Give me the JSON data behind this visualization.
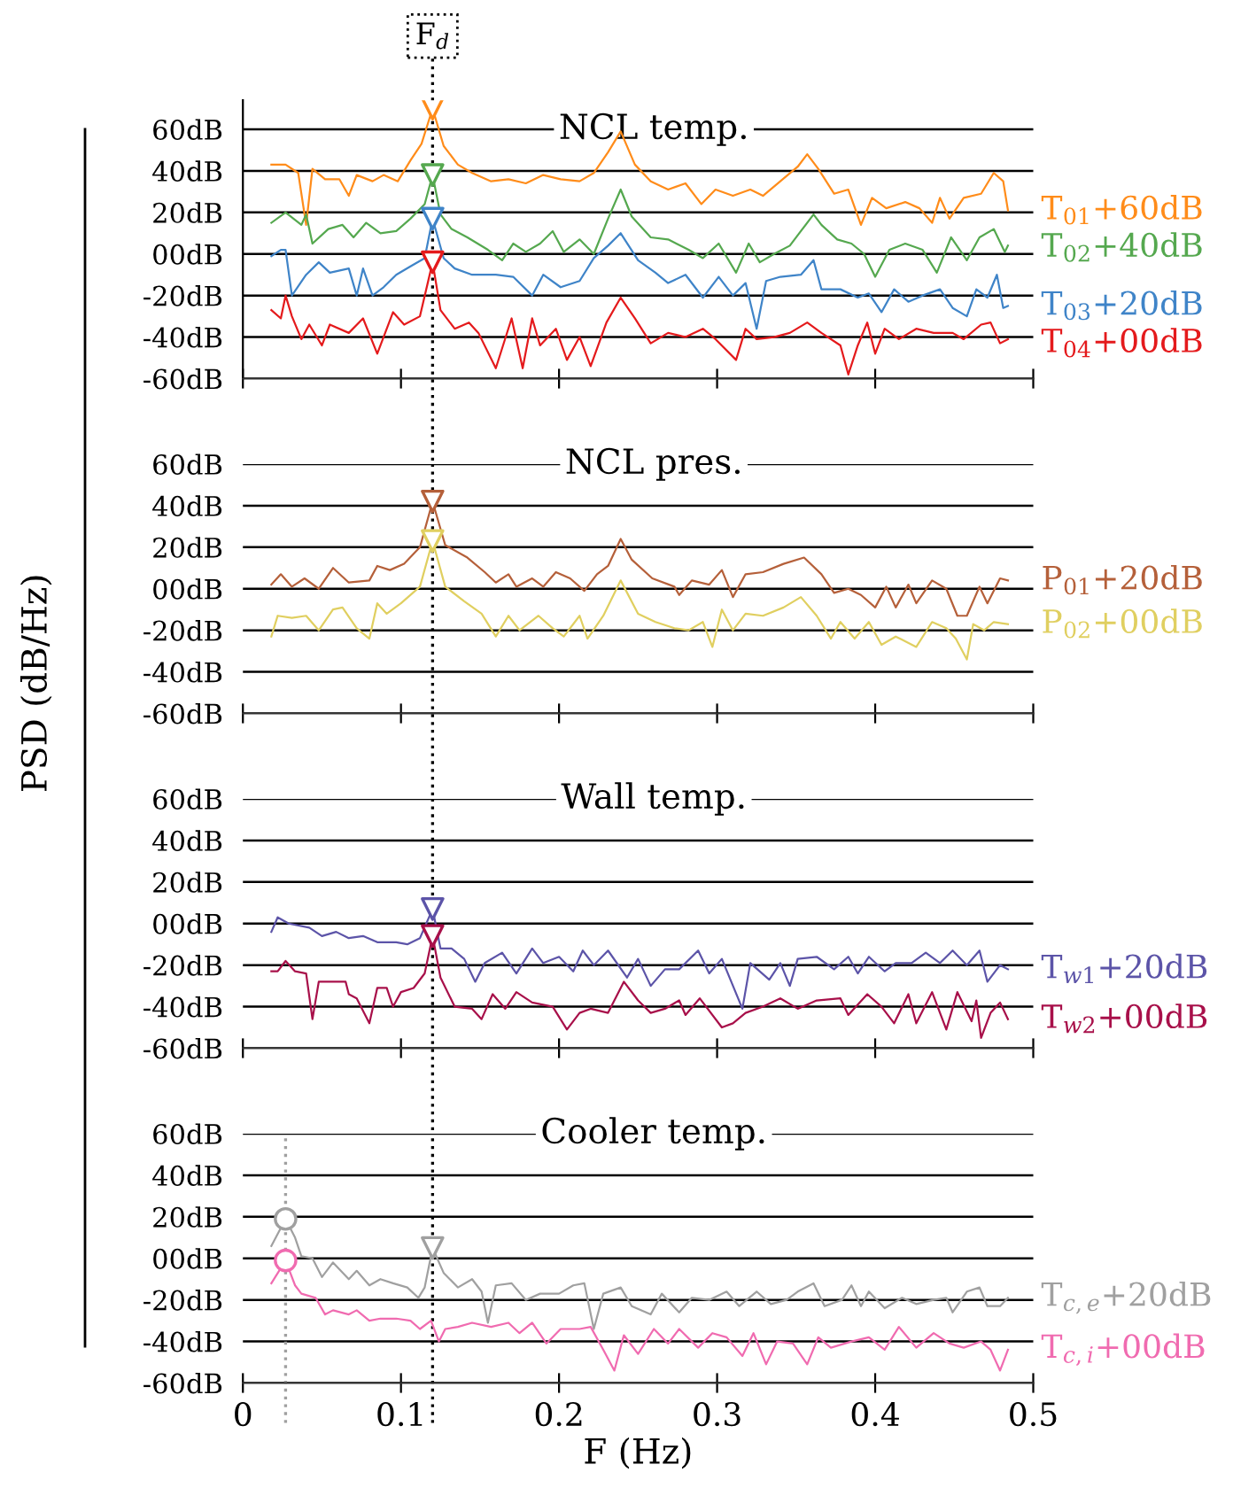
{
  "chart_data": [
    {
      "type": "line",
      "title": "NCL temp.",
      "xlim": [
        0,
        0.5
      ],
      "xticks": [
        0,
        0.1,
        0.2,
        0.3,
        0.4,
        0.5
      ],
      "ylim": [
        -60,
        74
      ],
      "yticks": [
        {
          "value": 60,
          "label": "60dB"
        },
        {
          "value": 40,
          "label": "40dB"
        },
        {
          "value": 20,
          "label": "20dB"
        },
        {
          "value": 0,
          "label": "00dB"
        },
        {
          "value": -20,
          "label": "-20dB"
        },
        {
          "value": -40,
          "label": "-40dB"
        },
        {
          "value": -60,
          "label": "-60dB"
        }
      ],
      "grid": "y",
      "tick_labels": "y",
      "line_style": "solid",
      "ref_lines": [
        {
          "axis": "x",
          "value": 0.12,
          "label": "F$_{d}$",
          "line_style": "dotted",
          "color": "#000000"
        }
      ],
      "series": [
        {
          "name": "T$_{01}$+60dB",
          "color": "#ff8c1a",
          "x": [
            0.018,
            0.027,
            0.035,
            0.04,
            0.044,
            0.052,
            0.061,
            0.067,
            0.072,
            0.082,
            0.089,
            0.098,
            0.106,
            0.113,
            0.12,
            0.127,
            0.136,
            0.145,
            0.157,
            0.168,
            0.179,
            0.19,
            0.201,
            0.213,
            0.222,
            0.231,
            0.239,
            0.248,
            0.258,
            0.269,
            0.28,
            0.29,
            0.299,
            0.31,
            0.321,
            0.329,
            0.34,
            0.351,
            0.357,
            0.364,
            0.374,
            0.383,
            0.391,
            0.398,
            0.407,
            0.419,
            0.428,
            0.436,
            0.441,
            0.447,
            0.456,
            0.467,
            0.475,
            0.481,
            0.484
          ],
          "values": [
            43,
            43,
            39,
            14,
            41,
            36,
            36,
            28,
            38,
            35,
            38,
            35,
            45,
            53,
            70,
            52,
            43,
            39,
            35,
            36,
            34,
            38,
            36,
            35,
            39,
            49,
            59,
            43,
            35,
            31,
            34,
            24,
            31,
            28,
            31,
            28,
            35,
            42,
            48,
            41,
            29,
            31,
            14,
            27,
            22,
            25,
            22,
            15,
            27,
            17,
            27,
            29,
            39,
            35,
            21
          ]
        },
        {
          "name": "T$_{02}$+40dB",
          "color": "#55a84f",
          "x": [
            0.018,
            0.027,
            0.037,
            0.04,
            0.044,
            0.054,
            0.063,
            0.07,
            0.078,
            0.087,
            0.097,
            0.106,
            0.115,
            0.12,
            0.125,
            0.132,
            0.142,
            0.155,
            0.164,
            0.171,
            0.179,
            0.188,
            0.196,
            0.203,
            0.213,
            0.222,
            0.231,
            0.239,
            0.246,
            0.258,
            0.269,
            0.282,
            0.291,
            0.301,
            0.312,
            0.32,
            0.327,
            0.336,
            0.346,
            0.353,
            0.361,
            0.366,
            0.376,
            0.385,
            0.393,
            0.4,
            0.409,
            0.419,
            0.43,
            0.439,
            0.448,
            0.458,
            0.466,
            0.475,
            0.482,
            0.484
          ],
          "values": [
            15,
            20,
            14,
            19,
            5,
            12,
            14,
            8,
            15,
            10,
            11,
            17,
            24,
            38,
            19,
            12,
            8,
            2,
            -3,
            5,
            1,
            5,
            11,
            1,
            7,
            0,
            17,
            31,
            18,
            8,
            7,
            2,
            -2,
            5,
            -9,
            5,
            -4,
            0,
            4,
            11,
            19,
            14,
            7,
            5,
            0,
            -11,
            2,
            5,
            2,
            -9,
            8,
            -3,
            8,
            12,
            1,
            4
          ]
        },
        {
          "name": "T$_{03}$+20dB",
          "color": "#3f84c8",
          "x": [
            0.018,
            0.024,
            0.027,
            0.031,
            0.04,
            0.048,
            0.055,
            0.067,
            0.072,
            0.076,
            0.082,
            0.089,
            0.097,
            0.106,
            0.115,
            0.12,
            0.127,
            0.134,
            0.145,
            0.16,
            0.171,
            0.183,
            0.19,
            0.201,
            0.213,
            0.222,
            0.231,
            0.239,
            0.25,
            0.261,
            0.269,
            0.28,
            0.291,
            0.301,
            0.31,
            0.318,
            0.325,
            0.331,
            0.34,
            0.353,
            0.361,
            0.366,
            0.378,
            0.389,
            0.396,
            0.404,
            0.412,
            0.421,
            0.43,
            0.441,
            0.449,
            0.458,
            0.464,
            0.471,
            0.477,
            0.481,
            0.484
          ],
          "values": [
            -1,
            2,
            2,
            -20,
            -10,
            -4,
            -9,
            -7,
            -20,
            -7,
            -20,
            -16,
            -10,
            -6,
            -2,
            17,
            -2,
            -7,
            -10,
            -10,
            -11,
            -20,
            -10,
            -16,
            -13,
            -2,
            4,
            10,
            -3,
            -9,
            -14,
            -10,
            -21,
            -11,
            -20,
            -14,
            -36,
            -13,
            -11,
            -10,
            -3,
            -17,
            -17,
            -21,
            -19,
            -28,
            -17,
            -23,
            -20,
            -17,
            -26,
            -30,
            -17,
            -21,
            -10,
            -26,
            -25
          ]
        },
        {
          "name": "T$_{04}$+00dB",
          "color": "#e41a1c",
          "x": [
            0.018,
            0.024,
            0.027,
            0.031,
            0.037,
            0.042,
            0.05,
            0.055,
            0.067,
            0.076,
            0.085,
            0.095,
            0.102,
            0.112,
            0.12,
            0.125,
            0.134,
            0.143,
            0.149,
            0.16,
            0.17,
            0.177,
            0.183,
            0.188,
            0.198,
            0.205,
            0.213,
            0.22,
            0.23,
            0.239,
            0.248,
            0.258,
            0.269,
            0.28,
            0.291,
            0.299,
            0.312,
            0.318,
            0.325,
            0.336,
            0.346,
            0.357,
            0.366,
            0.378,
            0.383,
            0.389,
            0.395,
            0.4,
            0.406,
            0.415,
            0.426,
            0.437,
            0.449,
            0.456,
            0.467,
            0.473,
            0.479,
            0.484
          ],
          "values": [
            -27,
            -31,
            -20,
            -30,
            -41,
            -34,
            -44,
            -34,
            -38,
            -31,
            -48,
            -28,
            -34,
            -30,
            -4,
            -27,
            -36,
            -33,
            -38,
            -55,
            -31,
            -55,
            -31,
            -44,
            -36,
            -51,
            -40,
            -54,
            -33,
            -21,
            -31,
            -43,
            -38,
            -40,
            -36,
            -41,
            -51,
            -36,
            -41,
            -40,
            -38,
            -33,
            -38,
            -44,
            -58,
            -44,
            -33,
            -48,
            -36,
            -41,
            -36,
            -38,
            -38,
            -41,
            -34,
            -33,
            -43,
            -41
          ]
        },
        {
          "type": "scatter",
          "marker": "triangle",
          "color": "#ff8c1a",
          "x": [
            0.12
          ],
          "values": [
            70
          ]
        },
        {
          "type": "scatter",
          "marker": "triangle",
          "color": "#55a84f",
          "x": [
            0.12
          ],
          "values": [
            38
          ]
        },
        {
          "type": "scatter",
          "marker": "triangle",
          "color": "#3f84c8",
          "x": [
            0.12
          ],
          "values": [
            17
          ]
        },
        {
          "type": "scatter",
          "marker": "triangle",
          "color": "#e41a1c",
          "x": [
            0.12
          ],
          "values": [
            -4
          ]
        }
      ]
    },
    {
      "type": "line",
      "title": "NCL pres.",
      "ylabel": "PSD (dB/Hz)",
      "xlim": [
        0,
        0.5
      ],
      "xticks": [
        0,
        0.1,
        0.2,
        0.3,
        0.4,
        0.5
      ],
      "ylim": [
        -60,
        60
      ],
      "yticks": [
        {
          "value": 60,
          "label": "60dB"
        },
        {
          "value": 40,
          "label": "40dB"
        },
        {
          "value": 20,
          "label": "20dB"
        },
        {
          "value": 0,
          "label": "00dB"
        },
        {
          "value": -20,
          "label": "-20dB"
        },
        {
          "value": -40,
          "label": "-40dB"
        },
        {
          "value": -60,
          "label": "-60dB"
        }
      ],
      "grid": "y",
      "tick_labels": "y",
      "line_style": "solid",
      "ref_lines": [
        {
          "axis": "x",
          "value": 0.12,
          "line_style": "dotted",
          "color": "#000000"
        }
      ],
      "series": [
        {
          "name": "P$_{01}$+20dB",
          "color": "#b5603a",
          "x": [
            0.018,
            0.024,
            0.031,
            0.039,
            0.048,
            0.057,
            0.067,
            0.08,
            0.085,
            0.093,
            0.102,
            0.112,
            0.12,
            0.128,
            0.142,
            0.153,
            0.16,
            0.168,
            0.173,
            0.183,
            0.19,
            0.198,
            0.207,
            0.216,
            0.224,
            0.231,
            0.239,
            0.246,
            0.259,
            0.273,
            0.276,
            0.284,
            0.295,
            0.303,
            0.31,
            0.318,
            0.329,
            0.342,
            0.355,
            0.366,
            0.374,
            0.383,
            0.391,
            0.4,
            0.407,
            0.413,
            0.421,
            0.426,
            0.436,
            0.445,
            0.452,
            0.458,
            0.466,
            0.471,
            0.479,
            0.484
          ],
          "values": [
            2,
            7,
            1,
            5,
            0,
            10,
            3,
            4,
            11,
            9,
            12,
            20,
            42,
            21,
            15,
            8,
            3,
            7,
            1,
            5,
            1,
            8,
            5,
            -1,
            7,
            11,
            24,
            14,
            5,
            1,
            -3,
            4,
            2,
            9,
            -4,
            7,
            8,
            12,
            15,
            7,
            -2,
            0,
            -3,
            -9,
            1,
            -9,
            2,
            -7,
            4,
            0,
            -13,
            -13,
            1,
            -7,
            5,
            4
          ]
        },
        {
          "name": "P$_{02}$+00dB",
          "color": "#e0cf60",
          "x": [
            0.018,
            0.022,
            0.031,
            0.04,
            0.048,
            0.057,
            0.063,
            0.072,
            0.08,
            0.085,
            0.091,
            0.1,
            0.112,
            0.12,
            0.128,
            0.14,
            0.151,
            0.16,
            0.168,
            0.175,
            0.187,
            0.196,
            0.203,
            0.213,
            0.218,
            0.228,
            0.239,
            0.25,
            0.261,
            0.273,
            0.282,
            0.291,
            0.297,
            0.303,
            0.31,
            0.318,
            0.329,
            0.342,
            0.353,
            0.363,
            0.372,
            0.378,
            0.387,
            0.396,
            0.404,
            0.413,
            0.426,
            0.436,
            0.445,
            0.451,
            0.458,
            0.462,
            0.469,
            0.475,
            0.484
          ],
          "values": [
            -23,
            -13,
            -14,
            -13,
            -20,
            -10,
            -9,
            -19,
            -24,
            -7,
            -12,
            -7,
            1,
            23,
            1,
            -6,
            -12,
            -23,
            -13,
            -20,
            -13,
            -19,
            -23,
            -13,
            -24,
            -13,
            4,
            -12,
            -16,
            -19,
            -20,
            -16,
            -28,
            -10,
            -20,
            -12,
            -13,
            -9,
            -4,
            -13,
            -24,
            -16,
            -24,
            -16,
            -27,
            -23,
            -28,
            -16,
            -19,
            -24,
            -34,
            -17,
            -20,
            -16,
            -17
          ]
        },
        {
          "type": "scatter",
          "marker": "triangle",
          "color": "#b5603a",
          "x": [
            0.12
          ],
          "values": [
            42
          ]
        },
        {
          "type": "scatter",
          "marker": "triangle",
          "color": "#e0cf60",
          "x": [
            0.12
          ],
          "values": [
            23
          ]
        }
      ]
    },
    {
      "type": "line",
      "title": "Wall temp.",
      "xlim": [
        0,
        0.5
      ],
      "xticks": [
        0,
        0.1,
        0.2,
        0.3,
        0.4,
        0.5
      ],
      "ylim": [
        -60,
        60
      ],
      "yticks": [
        {
          "value": 60,
          "label": "60dB"
        },
        {
          "value": 40,
          "label": "40dB"
        },
        {
          "value": 20,
          "label": "20dB"
        },
        {
          "value": 0,
          "label": "00dB"
        },
        {
          "value": -20,
          "label": "-20dB"
        },
        {
          "value": -40,
          "label": "-40dB"
        },
        {
          "value": -60,
          "label": "-60dB"
        }
      ],
      "grid": "y",
      "tick_labels": "y",
      "line_style": "solid",
      "ref_lines": [
        {
          "axis": "x",
          "value": 0.12,
          "line_style": "dotted",
          "color": "#000000"
        }
      ],
      "series": [
        {
          "name": "T$_{w1}$+20dB",
          "color": "#5c54a8",
          "x": [
            0.018,
            0.022,
            0.029,
            0.042,
            0.05,
            0.059,
            0.067,
            0.076,
            0.085,
            0.097,
            0.104,
            0.112,
            0.12,
            0.125,
            0.132,
            0.14,
            0.147,
            0.153,
            0.164,
            0.173,
            0.183,
            0.19,
            0.2,
            0.209,
            0.215,
            0.222,
            0.231,
            0.243,
            0.25,
            0.258,
            0.267,
            0.276,
            0.288,
            0.295,
            0.303,
            0.316,
            0.321,
            0.333,
            0.34,
            0.346,
            0.351,
            0.363,
            0.374,
            0.383,
            0.389,
            0.396,
            0.406,
            0.413,
            0.423,
            0.432,
            0.441,
            0.449,
            0.458,
            0.466,
            0.471,
            0.479,
            0.484
          ],
          "values": [
            -4,
            3,
            0,
            -2,
            -6,
            -4,
            -7,
            -6,
            -9,
            -9,
            -10,
            -7,
            7,
            -12,
            -12,
            -17,
            -28,
            -19,
            -14,
            -24,
            -12,
            -19,
            -16,
            -23,
            -13,
            -20,
            -13,
            -26,
            -17,
            -30,
            -22,
            -22,
            -13,
            -24,
            -17,
            -41,
            -19,
            -27,
            -19,
            -30,
            -17,
            -16,
            -22,
            -16,
            -24,
            -16,
            -23,
            -19,
            -19,
            -14,
            -19,
            -13,
            -20,
            -13,
            -28,
            -20,
            -22
          ]
        },
        {
          "name": "T$_{w2}$+00dB",
          "color": "#a8104a",
          "x": [
            0.018,
            0.022,
            0.027,
            0.033,
            0.04,
            0.044,
            0.048,
            0.059,
            0.065,
            0.067,
            0.072,
            0.08,
            0.085,
            0.091,
            0.095,
            0.1,
            0.108,
            0.115,
            0.12,
            0.125,
            0.134,
            0.145,
            0.151,
            0.158,
            0.166,
            0.173,
            0.183,
            0.196,
            0.205,
            0.213,
            0.22,
            0.231,
            0.241,
            0.25,
            0.258,
            0.267,
            0.276,
            0.28,
            0.289,
            0.303,
            0.31,
            0.318,
            0.329,
            0.34,
            0.351,
            0.363,
            0.378,
            0.383,
            0.395,
            0.404,
            0.412,
            0.421,
            0.426,
            0.436,
            0.445,
            0.452,
            0.461,
            0.464,
            0.467,
            0.473,
            0.479,
            0.484
          ],
          "values": [
            -23,
            -23,
            -18,
            -23,
            -24,
            -46,
            -28,
            -28,
            -28,
            -34,
            -36,
            -48,
            -31,
            -31,
            -40,
            -33,
            -31,
            -24,
            -6,
            -26,
            -40,
            -41,
            -46,
            -34,
            -41,
            -33,
            -38,
            -40,
            -51,
            -43,
            -41,
            -43,
            -28,
            -37,
            -43,
            -41,
            -37,
            -44,
            -36,
            -50,
            -48,
            -43,
            -40,
            -36,
            -41,
            -37,
            -36,
            -44,
            -34,
            -40,
            -48,
            -34,
            -48,
            -33,
            -51,
            -33,
            -47,
            -37,
            -55,
            -43,
            -38,
            -46
          ]
        },
        {
          "type": "scatter",
          "marker": "triangle",
          "color": "#5c54a8",
          "x": [
            0.12
          ],
          "values": [
            7
          ]
        },
        {
          "type": "scatter",
          "marker": "triangle",
          "color": "#a8104a",
          "x": [
            0.12
          ],
          "values": [
            -6
          ]
        }
      ]
    },
    {
      "type": "line",
      "title": "Cooler temp.",
      "xlabel": "F (Hz)",
      "xlim": [
        0,
        0.5
      ],
      "xticks": [
        0,
        0.1,
        0.2,
        0.3,
        0.4,
        0.5
      ],
      "ylim": [
        -60,
        60
      ],
      "yticks": [
        {
          "value": 60,
          "label": "60dB"
        },
        {
          "value": 40,
          "label": "40dB"
        },
        {
          "value": 20,
          "label": "20dB"
        },
        {
          "value": 0,
          "label": "00dB"
        },
        {
          "value": -20,
          "label": "-20dB"
        },
        {
          "value": -40,
          "label": "-40dB"
        },
        {
          "value": -60,
          "label": "-60dB"
        }
      ],
      "grid": "y",
      "line_style": "solid",
      "ref_lines": [
        {
          "axis": "x",
          "value": 0.12,
          "line_style": "dotted",
          "color": "#000000"
        },
        {
          "axis": "x",
          "value": 0.027,
          "line_style": "dotted",
          "color": "#a0a0a0"
        }
      ],
      "series": [
        {
          "name": "T$_{c,e}$+20dB",
          "color": "#a0a0a0",
          "x": [
            0.018,
            0.027,
            0.033,
            0.037,
            0.044,
            0.05,
            0.057,
            0.067,
            0.072,
            0.08,
            0.087,
            0.095,
            0.104,
            0.111,
            0.115,
            0.12,
            0.127,
            0.136,
            0.145,
            0.151,
            0.155,
            0.16,
            0.17,
            0.179,
            0.188,
            0.2,
            0.209,
            0.216,
            0.222,
            0.228,
            0.239,
            0.246,
            0.258,
            0.265,
            0.276,
            0.284,
            0.295,
            0.306,
            0.314,
            0.325,
            0.334,
            0.344,
            0.351,
            0.361,
            0.368,
            0.379,
            0.385,
            0.391,
            0.396,
            0.406,
            0.417,
            0.426,
            0.437,
            0.445,
            0.449,
            0.458,
            0.466,
            0.471,
            0.479,
            0.484
          ],
          "values": [
            6,
            19,
            10,
            1,
            0,
            -9,
            -2,
            -10,
            -6,
            -13,
            -10,
            -12,
            -14,
            -19,
            -14,
            5,
            -7,
            -14,
            -10,
            -16,
            -31,
            -13,
            -12,
            -20,
            -17,
            -17,
            -13,
            -12,
            -34,
            -17,
            -14,
            -23,
            -27,
            -17,
            -26,
            -19,
            -20,
            -16,
            -23,
            -16,
            -22,
            -20,
            -16,
            -12,
            -23,
            -20,
            -13,
            -23,
            -16,
            -24,
            -19,
            -22,
            -20,
            -19,
            -26,
            -16,
            -14,
            -23,
            -23,
            -19
          ]
        },
        {
          "name": "T$_{c,i}$+00dB",
          "color": "#f06bb0",
          "x": [
            0.018,
            0.027,
            0.033,
            0.037,
            0.046,
            0.052,
            0.057,
            0.067,
            0.072,
            0.08,
            0.087,
            0.097,
            0.106,
            0.112,
            0.119,
            0.124,
            0.128,
            0.136,
            0.145,
            0.157,
            0.168,
            0.175,
            0.183,
            0.192,
            0.201,
            0.213,
            0.22,
            0.228,
            0.235,
            0.241,
            0.25,
            0.26,
            0.269,
            0.276,
            0.288,
            0.297,
            0.306,
            0.316,
            0.323,
            0.331,
            0.338,
            0.348,
            0.357,
            0.364,
            0.372,
            0.385,
            0.396,
            0.406,
            0.415,
            0.426,
            0.437,
            0.447,
            0.456,
            0.467,
            0.473,
            0.479,
            0.484
          ],
          "values": [
            -12,
            -1,
            -13,
            -17,
            -19,
            -27,
            -25,
            -27,
            -25,
            -30,
            -29,
            -29,
            -30,
            -34,
            -30,
            -40,
            -34,
            -33,
            -31,
            -33,
            -31,
            -36,
            -31,
            -41,
            -34,
            -34,
            -33,
            -44,
            -54,
            -37,
            -46,
            -34,
            -41,
            -34,
            -43,
            -36,
            -38,
            -47,
            -36,
            -51,
            -40,
            -41,
            -51,
            -38,
            -43,
            -40,
            -38,
            -44,
            -33,
            -43,
            -36,
            -41,
            -43,
            -40,
            -44,
            -54,
            -44
          ]
        },
        {
          "type": "scatter",
          "marker": "circle",
          "color": "#a0a0a0",
          "x": [
            0.027
          ],
          "values": [
            19
          ]
        },
        {
          "type": "scatter",
          "marker": "circle",
          "color": "#f06bb0",
          "x": [
            0.027
          ],
          "values": [
            -1
          ]
        },
        {
          "type": "scatter",
          "marker": "triangle",
          "color": "#a0a0a0",
          "x": [
            0.12
          ],
          "values": [
            5
          ]
        }
      ]
    }
  ]
}
